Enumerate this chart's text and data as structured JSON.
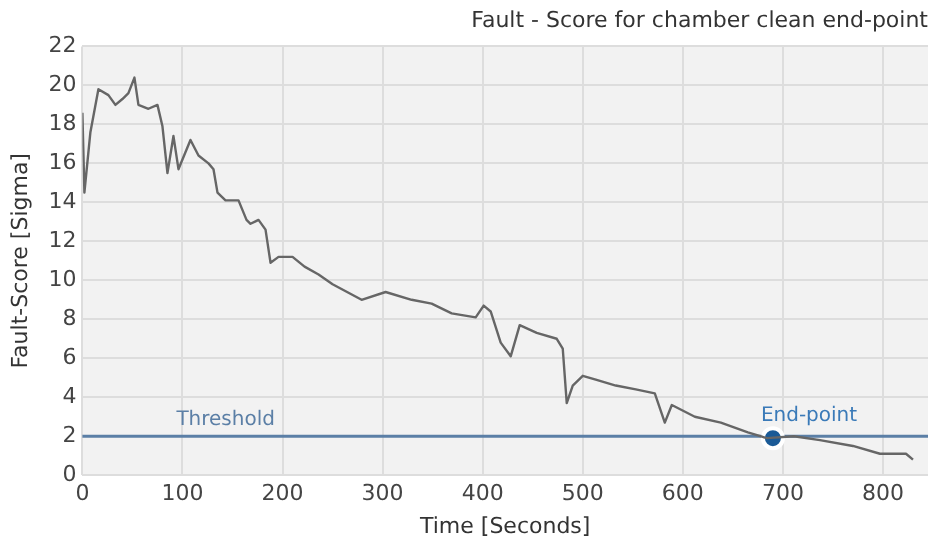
{
  "chart_data": {
    "type": "line",
    "title": "Fault - Score for chamber clean end-point",
    "xlabel": "Time [Seconds]",
    "ylabel": "Fault-Score [Sigma]",
    "xlim": [
      0,
      845
    ],
    "xticks": [
      0,
      100,
      200,
      300,
      400,
      500,
      600,
      700,
      800
    ],
    "ylim": [
      0,
      22
    ],
    "yticks": [
      0,
      2,
      4,
      6,
      8,
      10,
      12,
      14,
      16,
      18,
      20,
      22
    ],
    "grid": true,
    "legend": false,
    "series": [
      {
        "color": "#666666",
        "marker": "none",
        "x": [
          0,
          2,
          8,
          16,
          26,
          33,
          40,
          46,
          52,
          56,
          66,
          75,
          80,
          85,
          91,
          96,
          108,
          116,
          126,
          131,
          135,
          143,
          150,
          156,
          164,
          168,
          176,
          183,
          188,
          196,
          210,
          222,
          236,
          250,
          279,
          303,
          329,
          349,
          369,
          393,
          401,
          408,
          418,
          428,
          437,
          454,
          474,
          480,
          484,
          490,
          500,
          513,
          533,
          553,
          572,
          582,
          589,
          612,
          638,
          665,
          684,
          711,
          737,
          770,
          797,
          823,
          830
        ],
        "values": [
          18.6,
          14.5,
          17.6,
          19.8,
          19.5,
          19,
          19.3,
          19.6,
          20.4,
          19,
          18.8,
          19,
          17.9,
          15.5,
          17.4,
          15.7,
          17.2,
          16.4,
          16,
          15.7,
          14.5,
          14.1,
          14.1,
          14.1,
          13.1,
          12.9,
          13.1,
          12.6,
          10.9,
          11.2,
          11.2,
          10.7,
          10.3,
          9.8,
          9,
          9.4,
          9,
          8.8,
          8.3,
          8.1,
          8.7,
          8.4,
          6.8,
          6.1,
          7.7,
          7.3,
          7,
          6.5,
          3.7,
          4.6,
          5.1,
          4.9,
          4.6,
          4.4,
          4.2,
          2.7,
          3.6,
          3,
          2.7,
          2.2,
          1.9,
          2,
          1.8,
          1.5,
          1.1,
          1.1,
          0.8
        ]
      },
      {
        "type": "scatter",
        "color": "#1a5a96",
        "marker": "circle",
        "x": [
          690
        ],
        "values": [
          1.9
        ]
      }
    ],
    "ref_lines": [
      {
        "axis": "y",
        "value": 2,
        "label": "Threshold",
        "color": "#5b7fa6"
      }
    ],
    "annotations": [
      {
        "text": "End-point",
        "x": 690,
        "y": 1.9
      }
    ]
  }
}
